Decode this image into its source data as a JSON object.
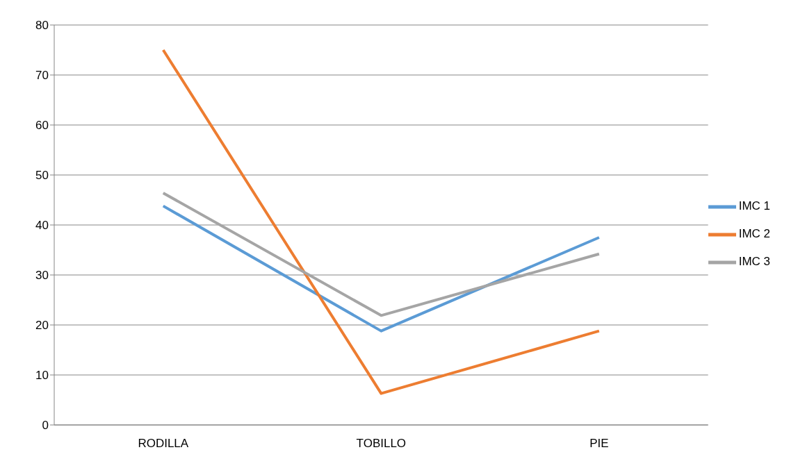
{
  "chart_data": {
    "type": "line",
    "categories": [
      "RODILLA",
      "TOBILLO",
      "PIE"
    ],
    "series": [
      {
        "name": "IMC 1",
        "color": "#5b9bd5",
        "values": [
          43.8,
          18.8,
          37.5
        ]
      },
      {
        "name": "IMC 2",
        "color": "#ed7d31",
        "values": [
          75,
          6.3,
          18.8
        ]
      },
      {
        "name": "IMC 3",
        "color": "#a5a5a5",
        "values": [
          46.4,
          21.9,
          34.2
        ]
      }
    ],
    "ylim": [
      0,
      80
    ],
    "yticks": [
      0,
      10,
      20,
      30,
      40,
      50,
      60,
      70,
      80
    ],
    "grid": "y",
    "legend": "right",
    "marker": "none",
    "line_style": "solid"
  }
}
